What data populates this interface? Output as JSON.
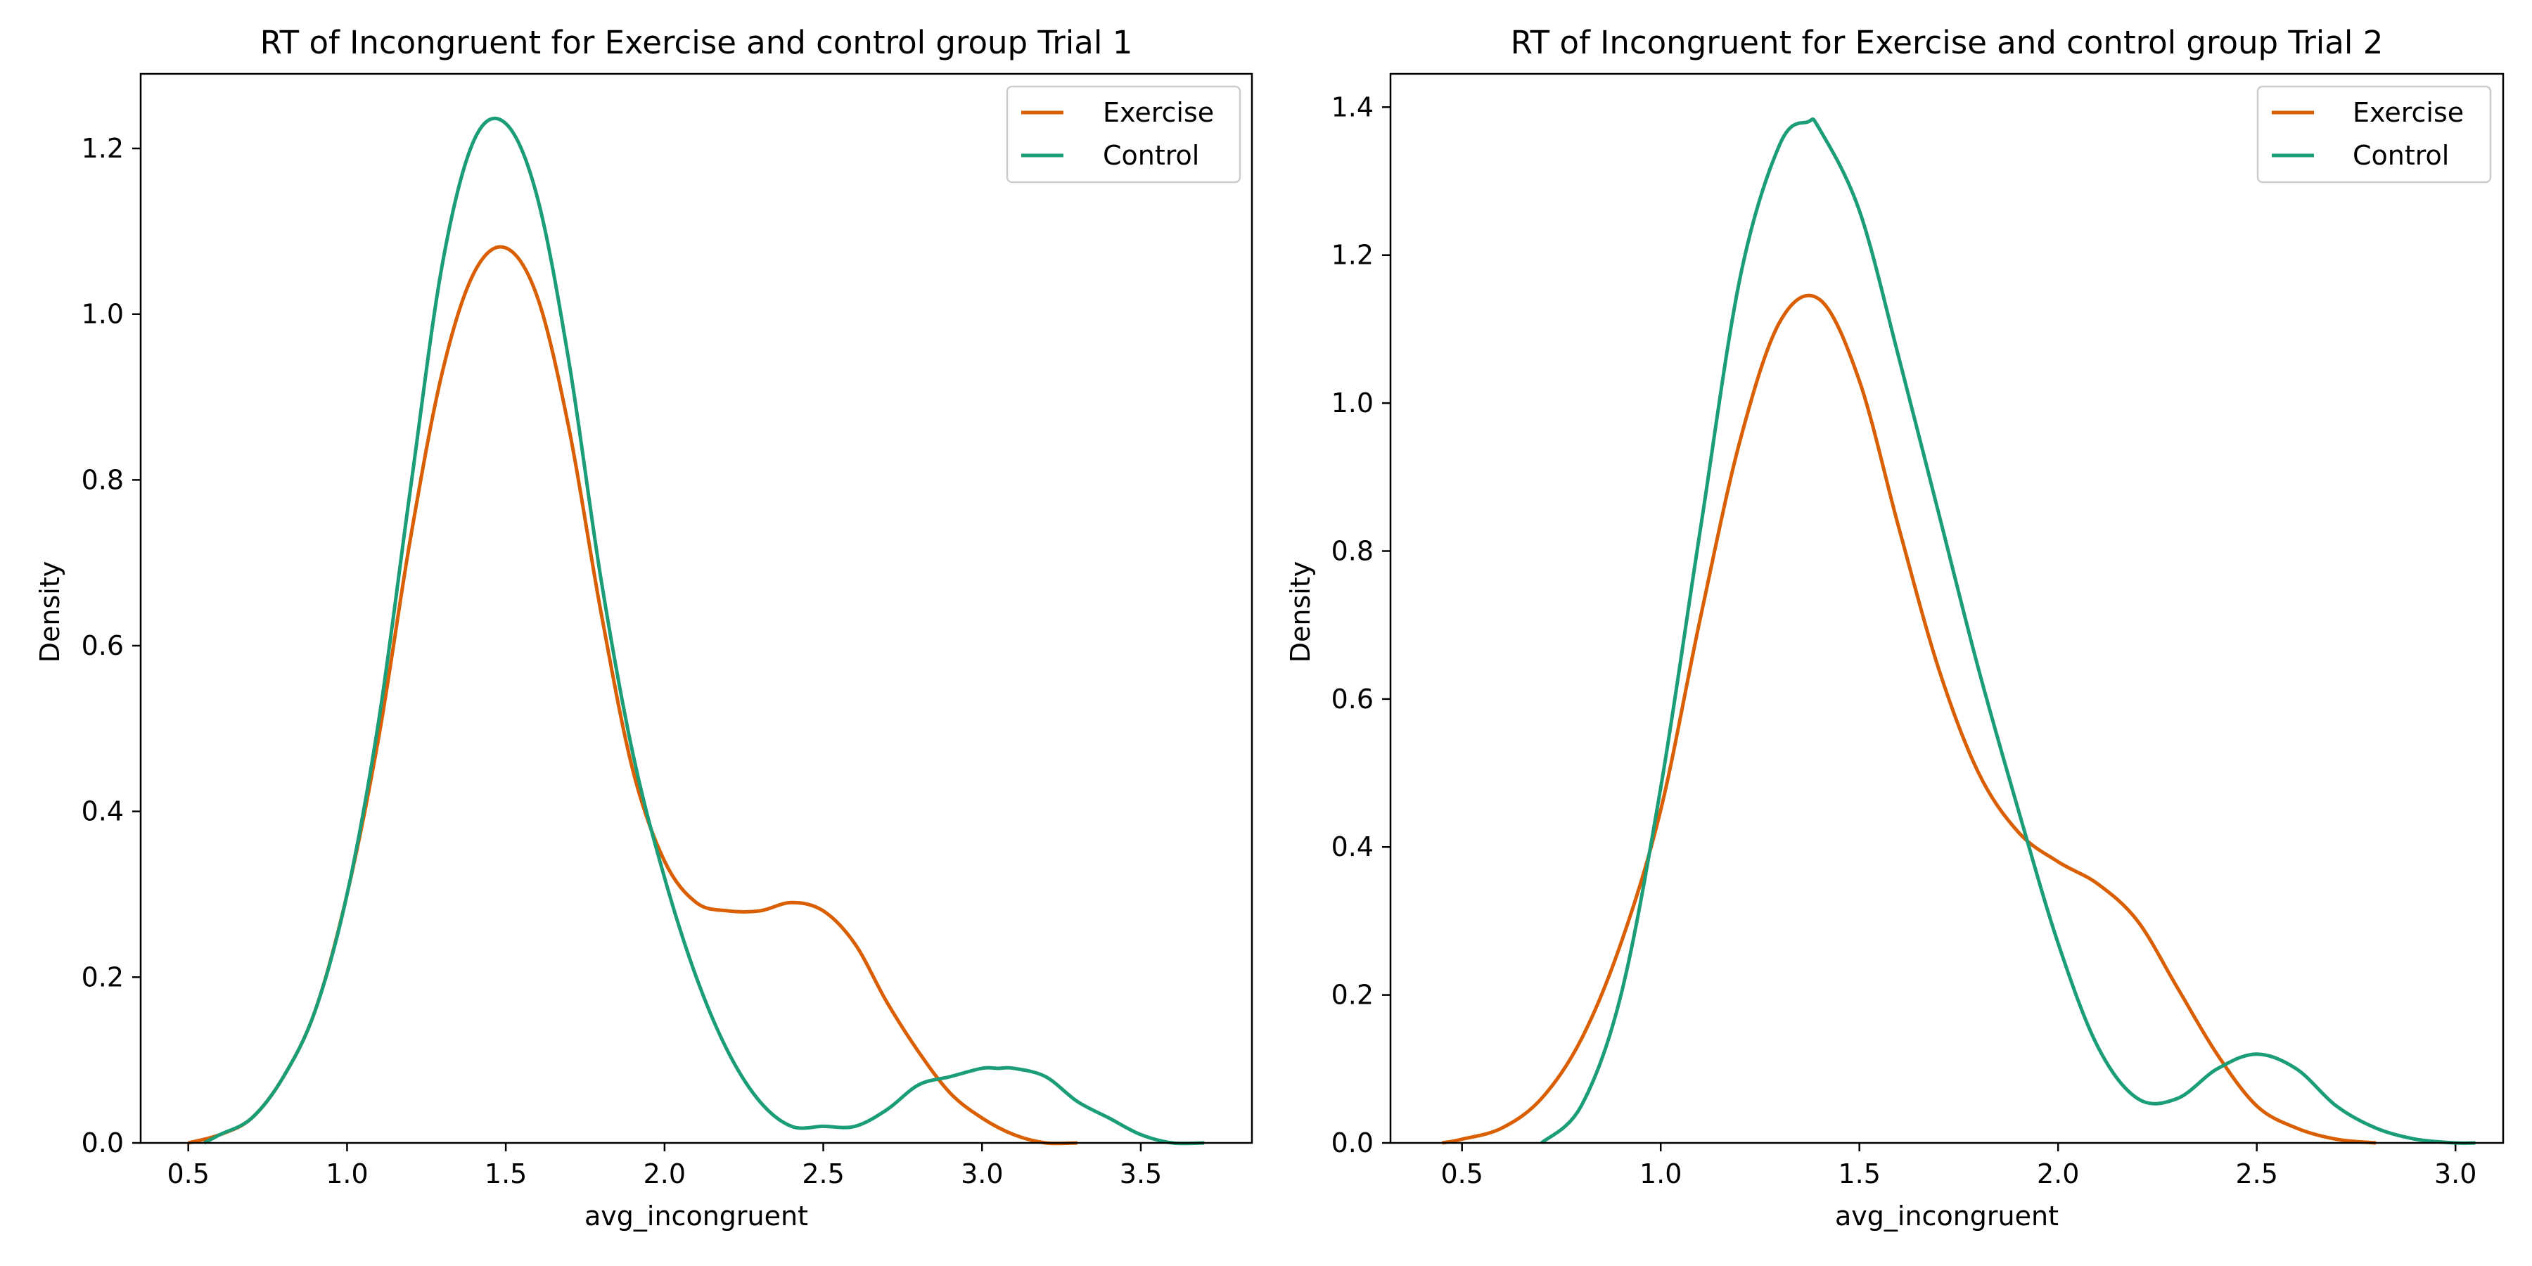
{
  "figure": {
    "background": "#ffffff"
  },
  "chart_data": [
    {
      "type": "line",
      "chart_kind": "kde",
      "title": "RT of Incongruent for Exercise and control group Trial 1",
      "xlabel": "avg_incongruent",
      "ylabel": "Density",
      "xlim": [
        0.35,
        3.85
      ],
      "ylim": [
        0.0,
        1.29
      ],
      "xticks": [
        0.5,
        1.0,
        1.5,
        2.0,
        2.5,
        3.0,
        3.5
      ],
      "xtick_labels": [
        "0.5",
        "1.0",
        "1.5",
        "2.0",
        "2.5",
        "3.0",
        "3.5"
      ],
      "yticks": [
        0.0,
        0.2,
        0.4,
        0.6,
        0.8,
        1.0,
        1.2
      ],
      "ytick_labels": [
        "0.0",
        "0.2",
        "0.4",
        "0.6",
        "0.8",
        "1.0",
        "1.2"
      ],
      "grid": false,
      "legend_position": "top-right",
      "series": [
        {
          "name": "Exercise",
          "color": "#d95f02",
          "x": [
            0.5,
            0.6,
            0.7,
            0.8,
            0.9,
            1.0,
            1.1,
            1.2,
            1.3,
            1.4,
            1.5,
            1.6,
            1.7,
            1.8,
            1.9,
            2.0,
            2.1,
            2.2,
            2.3,
            2.4,
            2.5,
            2.6,
            2.7,
            2.8,
            2.9,
            3.0,
            3.1,
            3.2,
            3.3
          ],
          "y": [
            0.0,
            0.01,
            0.03,
            0.08,
            0.16,
            0.3,
            0.49,
            0.73,
            0.93,
            1.05,
            1.08,
            1.02,
            0.86,
            0.64,
            0.45,
            0.34,
            0.29,
            0.28,
            0.28,
            0.29,
            0.28,
            0.24,
            0.17,
            0.11,
            0.06,
            0.03,
            0.01,
            0.0,
            0.0
          ]
        },
        {
          "name": "Control",
          "color": "#1b9e77",
          "x": [
            0.55,
            0.6,
            0.7,
            0.8,
            0.9,
            1.0,
            1.1,
            1.2,
            1.3,
            1.4,
            1.5,
            1.6,
            1.7,
            1.8,
            1.9,
            2.0,
            2.1,
            2.2,
            2.3,
            2.4,
            2.5,
            2.6,
            2.7,
            2.8,
            2.9,
            3.0,
            3.05,
            3.1,
            3.2,
            3.3,
            3.4,
            3.5,
            3.6,
            3.7
          ],
          "y": [
            0.0,
            0.01,
            0.03,
            0.08,
            0.16,
            0.3,
            0.51,
            0.79,
            1.06,
            1.21,
            1.23,
            1.14,
            0.94,
            0.68,
            0.47,
            0.32,
            0.2,
            0.11,
            0.05,
            0.02,
            0.02,
            0.02,
            0.04,
            0.07,
            0.08,
            0.09,
            0.09,
            0.09,
            0.08,
            0.05,
            0.03,
            0.01,
            0.0,
            0.0
          ]
        }
      ]
    },
    {
      "type": "line",
      "chart_kind": "kde",
      "title": "RT of Incongruent for Exercise and control group Trial 2",
      "xlabel": "avg_incongruent",
      "ylabel": "Density",
      "xlim": [
        0.32,
        3.12
      ],
      "ylim": [
        0.0,
        1.445
      ],
      "xticks": [
        0.5,
        1.0,
        1.5,
        2.0,
        2.5,
        3.0
      ],
      "xtick_labels": [
        "0.5",
        "1.0",
        "1.5",
        "2.0",
        "2.5",
        "3.0"
      ],
      "yticks": [
        0.0,
        0.2,
        0.4,
        0.6,
        0.8,
        1.0,
        1.2,
        1.4
      ],
      "ytick_labels": [
        "0.0",
        "0.2",
        "0.4",
        "0.6",
        "0.8",
        "1.0",
        "1.2",
        "1.4"
      ],
      "grid": false,
      "legend_position": "top-right",
      "series": [
        {
          "name": "Exercise",
          "color": "#d95f02",
          "x": [
            0.45,
            0.5,
            0.6,
            0.7,
            0.8,
            0.9,
            1.0,
            1.1,
            1.2,
            1.3,
            1.4,
            1.5,
            1.6,
            1.7,
            1.8,
            1.9,
            2.0,
            2.1,
            2.2,
            2.3,
            2.4,
            2.5,
            2.6,
            2.7,
            2.8
          ],
          "y": [
            0.0,
            0.005,
            0.02,
            0.06,
            0.14,
            0.27,
            0.45,
            0.71,
            0.95,
            1.11,
            1.14,
            1.03,
            0.83,
            0.64,
            0.5,
            0.42,
            0.38,
            0.35,
            0.3,
            0.21,
            0.12,
            0.05,
            0.02,
            0.005,
            0.0
          ]
        },
        {
          "name": "Control",
          "color": "#1b9e77",
          "x": [
            0.7,
            0.8,
            0.9,
            1.0,
            1.1,
            1.2,
            1.3,
            1.37,
            1.4,
            1.5,
            1.6,
            1.7,
            1.8,
            1.9,
            2.0,
            2.1,
            2.2,
            2.3,
            2.4,
            2.5,
            2.6,
            2.7,
            2.8,
            2.9,
            3.0,
            3.05
          ],
          "y": [
            0.0,
            0.05,
            0.2,
            0.48,
            0.83,
            1.17,
            1.35,
            1.38,
            1.37,
            1.26,
            1.06,
            0.85,
            0.64,
            0.45,
            0.27,
            0.13,
            0.06,
            0.06,
            0.1,
            0.12,
            0.1,
            0.05,
            0.02,
            0.005,
            0.0,
            0.0
          ]
        }
      ]
    }
  ]
}
